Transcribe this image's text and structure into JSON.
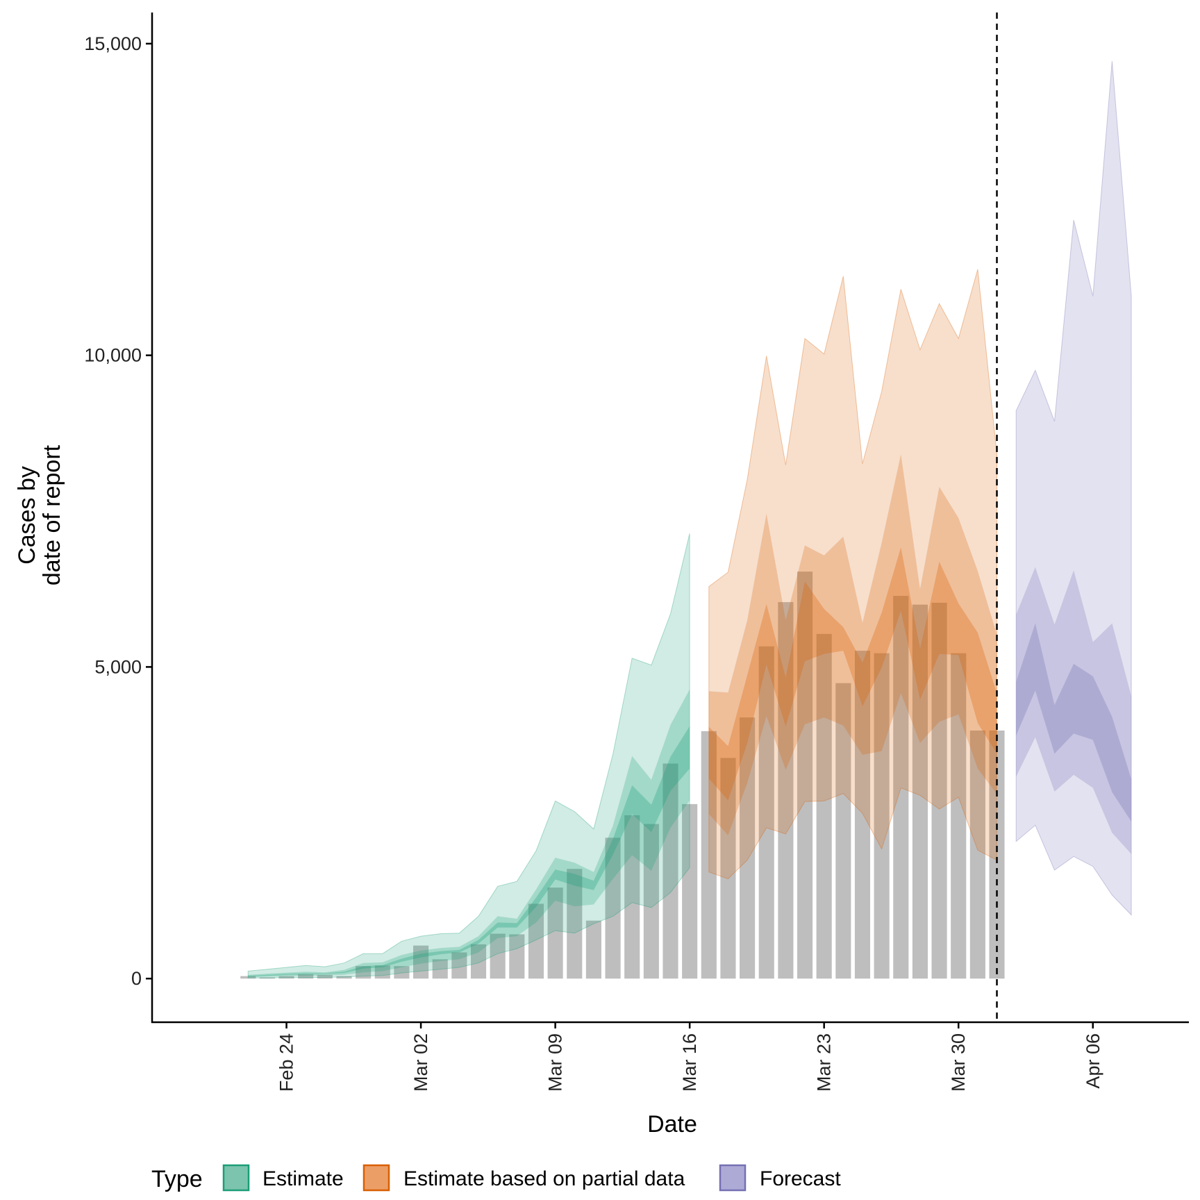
{
  "chart_data": {
    "type": "area",
    "xlabel": "Date",
    "ylabel_lines": [
      "Cases by",
      "date of report"
    ],
    "ylim": [
      -700,
      15500
    ],
    "xlim": [
      "2020-02-17",
      "2020-04-11"
    ],
    "y_ticks": [
      0,
      5000,
      10000,
      15000
    ],
    "y_tick_labels": [
      "0",
      "5,000",
      "10,000",
      "15,000"
    ],
    "x_ticks": [
      "2020-02-24",
      "2020-03-02",
      "2020-03-09",
      "2020-03-16",
      "2020-03-23",
      "2020-03-30",
      "2020-04-06"
    ],
    "x_tick_labels": [
      "Feb 24",
      "Mar 02",
      "Mar 09",
      "Mar 16",
      "Mar 23",
      "Mar 30",
      "Apr 06"
    ],
    "vline_date": "2020-04-01",
    "grid": false,
    "legend": {
      "title": "Type",
      "placement": "bottom",
      "items": [
        {
          "label": "Estimate",
          "fill": "#7cc4ad",
          "stroke": "#1b9e77"
        },
        {
          "label": "Estimate based on partial data",
          "fill": "#ec9e67",
          "stroke": "#d95f02"
        },
        {
          "label": "Forecast",
          "fill": "#aeaad6",
          "stroke": "#7570b3"
        }
      ]
    },
    "bar_color": "#bebebe",
    "bars": {
      "dates": [
        "2020-02-22",
        "2020-02-23",
        "2020-02-24",
        "2020-02-25",
        "2020-02-26",
        "2020-02-27",
        "2020-02-28",
        "2020-02-29",
        "2020-03-01",
        "2020-03-02",
        "2020-03-03",
        "2020-03-04",
        "2020-03-05",
        "2020-03-06",
        "2020-03-07",
        "2020-03-08",
        "2020-03-09",
        "2020-03-10",
        "2020-03-11",
        "2020-03-12",
        "2020-03-13",
        "2020-03-14",
        "2020-03-15",
        "2020-03-16",
        "2020-03-17",
        "2020-03-18",
        "2020-03-19",
        "2020-03-20",
        "2020-03-21",
        "2020-03-22",
        "2020-03-23",
        "2020-03-24",
        "2020-03-25",
        "2020-03-26",
        "2020-03-27",
        "2020-03-28",
        "2020-03-29",
        "2020-03-30",
        "2020-03-31",
        "2020-04-01"
      ],
      "values": [
        40,
        20,
        40,
        70,
        60,
        40,
        200,
        210,
        200,
        530,
        310,
        420,
        550,
        720,
        710,
        1200,
        1460,
        1760,
        930,
        2260,
        2620,
        2480,
        3450,
        2800,
        3970,
        3540,
        4190,
        5330,
        6040,
        6530,
        5530,
        4740,
        5260,
        5220,
        6140,
        6000,
        6030,
        5220,
        3980,
        3980
      ]
    },
    "series": [
      {
        "name": "Estimate",
        "color": "#1b9e77",
        "dates": [
          "2020-02-22",
          "2020-02-23",
          "2020-02-24",
          "2020-02-25",
          "2020-02-26",
          "2020-02-27",
          "2020-02-28",
          "2020-02-29",
          "2020-03-01",
          "2020-03-02",
          "2020-03-03",
          "2020-03-04",
          "2020-03-05",
          "2020-03-06",
          "2020-03-07",
          "2020-03-08",
          "2020-03-09",
          "2020-03-10",
          "2020-03-11",
          "2020-03-12",
          "2020-03-13",
          "2020-03-14",
          "2020-03-15",
          "2020-03-16"
        ],
        "lower90": [
          10,
          10,
          15,
          15,
          20,
          25,
          40,
          50,
          90,
          120,
          150,
          180,
          250,
          400,
          480,
          620,
          770,
          730,
          880,
          1000,
          1220,
          1140,
          1380,
          1780
        ],
        "upper90": [
          120,
          150,
          180,
          210,
          190,
          250,
          400,
          400,
          600,
          680,
          720,
          730,
          1000,
          1480,
          1560,
          2050,
          2850,
          2680,
          2400,
          3600,
          5140,
          5030,
          5850,
          7140
        ],
        "lower50": [
          20,
          30,
          40,
          45,
          50,
          60,
          100,
          120,
          180,
          240,
          280,
          310,
          420,
          650,
          680,
          900,
          1250,
          1160,
          1190,
          1600,
          1980,
          1730,
          2420,
          2860
        ],
        "upper50": [
          60,
          80,
          95,
          110,
          100,
          140,
          250,
          260,
          380,
          450,
          490,
          510,
          680,
          1000,
          960,
          1430,
          1940,
          1860,
          1710,
          2450,
          3570,
          3190,
          4070,
          4640
        ],
        "lower20": [
          35,
          45,
          60,
          70,
          75,
          90,
          160,
          180,
          270,
          340,
          390,
          420,
          560,
          820,
          820,
          1150,
          1590,
          1490,
          1420,
          1990,
          2640,
          2350,
          3010,
          3370
        ],
        "upper20": [
          45,
          60,
          75,
          85,
          85,
          110,
          200,
          215,
          320,
          400,
          440,
          460,
          620,
          900,
          890,
          1300,
          1750,
          1680,
          1570,
          2240,
          3100,
          2790,
          3560,
          4050
        ]
      },
      {
        "name": "Estimate based on partial data",
        "color": "#d95f02",
        "dates": [
          "2020-03-17",
          "2020-03-18",
          "2020-03-19",
          "2020-03-20",
          "2020-03-21",
          "2020-03-22",
          "2020-03-23",
          "2020-03-24",
          "2020-03-25",
          "2020-03-26",
          "2020-03-27",
          "2020-03-28",
          "2020-03-29",
          "2020-03-30",
          "2020-03-31",
          "2020-04-01"
        ],
        "lower90": [
          1710,
          1600,
          1900,
          2420,
          2320,
          2840,
          2850,
          2970,
          2650,
          2080,
          3060,
          2940,
          2720,
          2910,
          2060,
          1900
        ],
        "upper90": [
          6290,
          6520,
          8010,
          9990,
          8240,
          10270,
          10020,
          11270,
          8260,
          9420,
          11060,
          10090,
          10830,
          10270,
          11380,
          8410
        ],
        "lower50": [
          2640,
          2300,
          3140,
          4210,
          3350,
          4080,
          4190,
          4060,
          3590,
          3650,
          4580,
          3780,
          4120,
          4240,
          3370,
          2960
        ],
        "upper50": [
          4610,
          4590,
          5750,
          7460,
          5750,
          6950,
          6790,
          7090,
          5710,
          6990,
          8410,
          6250,
          7890,
          7390,
          6540,
          5520
        ],
        "lower20": [
          3210,
          2860,
          3780,
          5040,
          4050,
          5090,
          5210,
          5260,
          4370,
          4990,
          5900,
          4480,
          5210,
          5190,
          4100,
          3610
        ],
        "upper20": [
          4040,
          3730,
          4870,
          6010,
          4830,
          6370,
          5930,
          5640,
          5070,
          5870,
          6920,
          5290,
          6690,
          6020,
          5550,
          4580
        ]
      },
      {
        "name": "Forecast",
        "color": "#7570b3",
        "dates": [
          "2020-04-02",
          "2020-04-03",
          "2020-04-04",
          "2020-04-05",
          "2020-04-06",
          "2020-04-07",
          "2020-04-08"
        ],
        "lower90": [
          2200,
          2460,
          1740,
          1960,
          1800,
          1340,
          1020
        ],
        "upper90": [
          9110,
          9760,
          8940,
          12170,
          10950,
          14720,
          10950
        ],
        "lower50": [
          3240,
          3870,
          3000,
          3270,
          3060,
          2340,
          2000
        ],
        "upper50": [
          5840,
          6600,
          5680,
          6550,
          5400,
          5700,
          4530
        ],
        "lower20": [
          3900,
          4620,
          3610,
          3930,
          3830,
          2990,
          2520
        ],
        "upper20": [
          4760,
          5700,
          4390,
          5050,
          4850,
          4200,
          3200
        ]
      }
    ]
  }
}
